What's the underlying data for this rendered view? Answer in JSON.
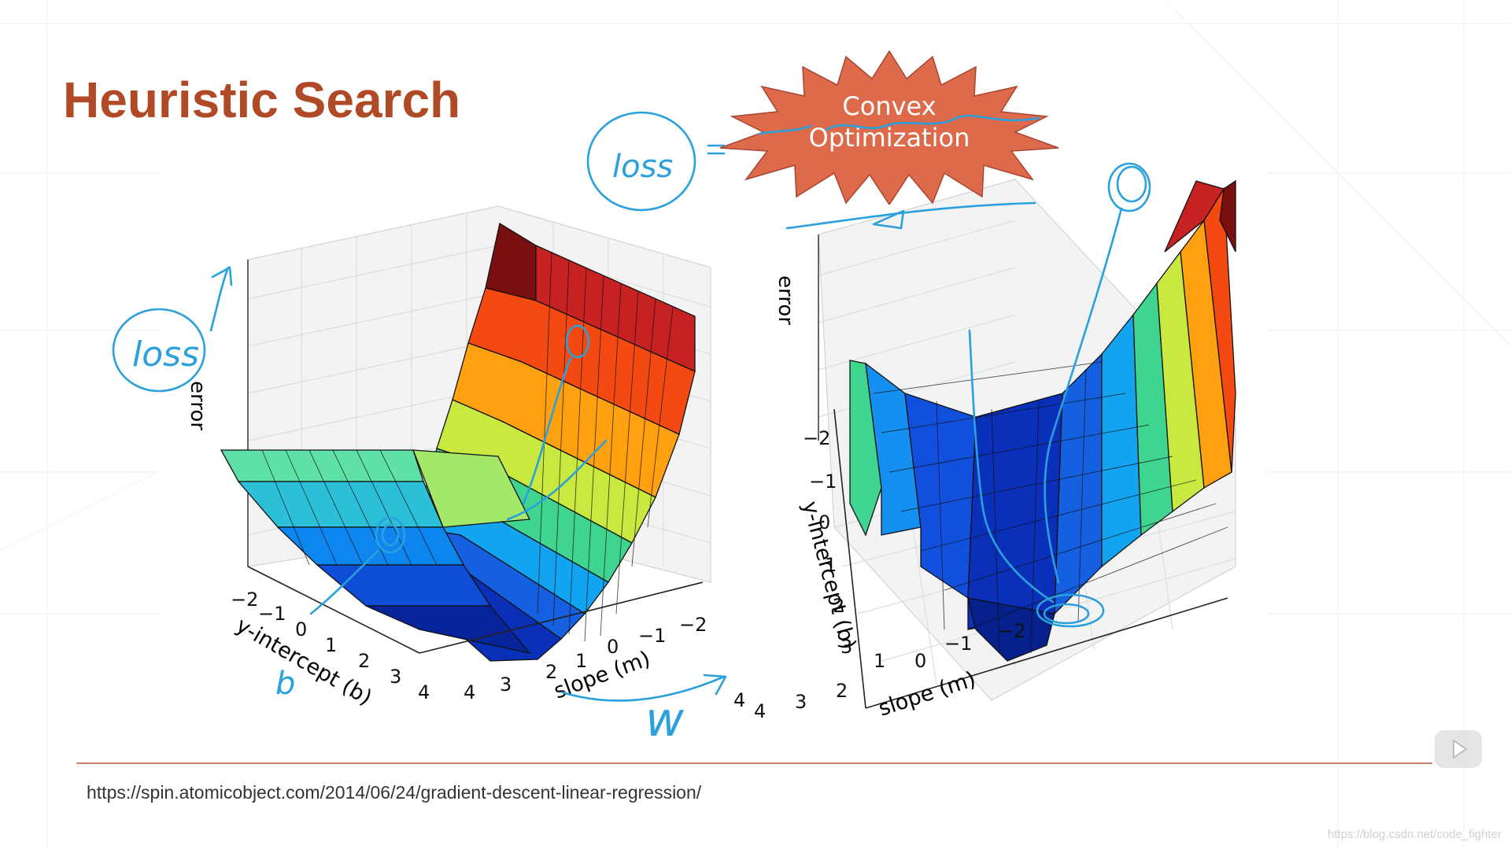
{
  "slide": {
    "title": "Heuristic Search",
    "source_url": "https://spin.atomicobject.com/2014/06/24/gradient-descent-linear-regression/",
    "watermark": "https://blog.csdn.net/code_fighter",
    "colors": {
      "title": "#b04a26",
      "divider": "#c7826c",
      "ink": "#2aa0dc",
      "burst": "#dd6a4a"
    }
  },
  "callout": {
    "line1": "Convex",
    "line2": "Optimization"
  },
  "annotations": {
    "loss_left": "loss",
    "loss_right": "loss",
    "b_mark": "b",
    "w_mark": "w"
  },
  "left_plot": {
    "z_label": "error",
    "x_label": "y-intercept (b)",
    "y_label": "slope (m)",
    "x_ticks": [
      "−2",
      "−1",
      "0",
      "1",
      "2",
      "3",
      "4"
    ],
    "y_ticks": [
      "4",
      "3",
      "2",
      "1",
      "0",
      "−1",
      "−2"
    ]
  },
  "right_plot": {
    "z_label": "error",
    "x_label": "y-intercept (b)",
    "y_label": "slope (m)",
    "x_ticks": [
      "−2",
      "−1",
      "0",
      "1",
      "2",
      "3",
      "4"
    ],
    "y_ticks": [
      "4",
      "3",
      "2",
      "1",
      "0",
      "−1",
      "−2"
    ]
  },
  "controls": {
    "play_icon": "play-icon"
  }
}
